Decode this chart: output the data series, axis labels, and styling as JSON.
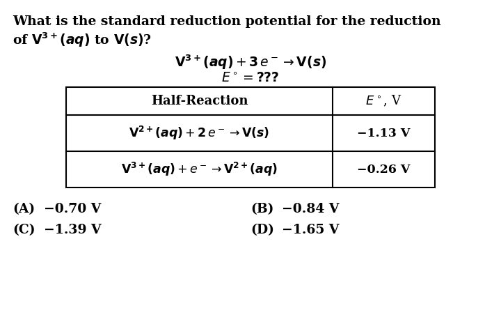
{
  "bg_color": "#ffffff",
  "question_line1": "What is the standard reduction potential for the reduction",
  "question_line2": "of $\\mathbf{V^{3+}}\\boldsymbol{(aq)}$ to $\\mathbf{V}\\boldsymbol{(s)}$?",
  "reaction_line1": "$\\mathbf{V^{3+}}\\boldsymbol{(aq)} + \\mathbf{3}\\, \\boldsymbol{e^-} \\rightarrow \\mathbf{V}\\boldsymbol{(s)}$",
  "reaction_line2": "$\\boldsymbol{E^\\circ} = \\mathbf{???}$",
  "table_header_col1": "Half-Reaction",
  "table_header_col2": "$\\boldsymbol{E^\\circ}$, V",
  "table_row1_col1": "$\\mathbf{V^{2+}}\\boldsymbol{(aq)} + \\mathbf{2}\\, \\boldsymbol{e^-} \\rightarrow \\mathbf{V}\\boldsymbol{(s)}$",
  "table_row1_col2": "−1.13 V",
  "table_row2_col1": "$\\mathbf{V^{3+}}\\boldsymbol{(aq)} + \\boldsymbol{e^-} \\rightarrow \\mathbf{V^{2+}}\\boldsymbol{(aq)}$",
  "table_row2_col2": "−0.26 V",
  "answer_A_bold": "(A)",
  "answer_A_rest": "  −0.70 V",
  "answer_B_bold": "(B)",
  "answer_B_rest": "  −0.84 V",
  "answer_C_bold": "(C)",
  "answer_C_rest": "  −1.39 V",
  "answer_D_bold": "(D)",
  "answer_D_rest": "  −1.65 V",
  "font_size_question": 13.5,
  "font_size_reaction": 13.5,
  "font_size_table_header": 13,
  "font_size_table_row": 12.5,
  "font_size_answers": 13.5
}
